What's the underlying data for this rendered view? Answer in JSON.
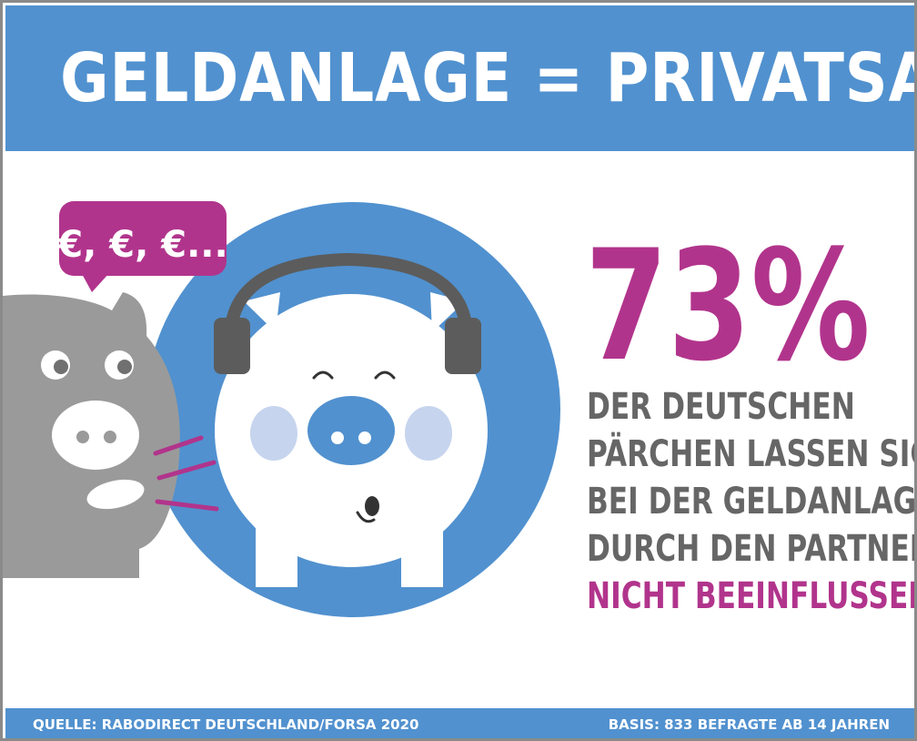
{
  "title": "GELDANLAGE = PRIVATSACHE",
  "speech_bubble": "€, €, €...",
  "stat": {
    "value": "73%",
    "line1": "DER DEUTSCHEN",
    "line2": "PÄRCHEN LASSEN SICH",
    "line3": "BEI DER GELDANLAGE",
    "line4": "DURCH DEN PARTNER",
    "highlight": "NICHT BEEINFLUSSEN",
    "end": "."
  },
  "footer": {
    "source": "QUELLE: RABODIRECT DEUTSCHLAND/FORSA 2020",
    "basis": "BASIS: 833 BEFRAGTE AB 14 JAHREN"
  },
  "colors": {
    "blue": "#5191cf",
    "magenta": "#b1348c",
    "gray_pig": "#9a9a9a",
    "text_gray": "#666666"
  },
  "icons": [
    "gray-pig-icon",
    "piggy-bank-with-headphones-icon",
    "speech-bubble-icon"
  ]
}
